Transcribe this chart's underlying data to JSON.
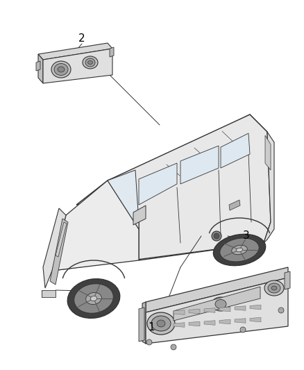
{
  "background_color": "#ffffff",
  "fig_width": 4.38,
  "fig_height": 5.33,
  "dpi": 100,
  "label_1": "1",
  "label_2": "2",
  "label_3": "3",
  "line_color": "#333333",
  "text_color": "#000000",
  "gray_light": "#d8d8d8",
  "gray_mid": "#b8b8b8",
  "gray_dark": "#888888"
}
